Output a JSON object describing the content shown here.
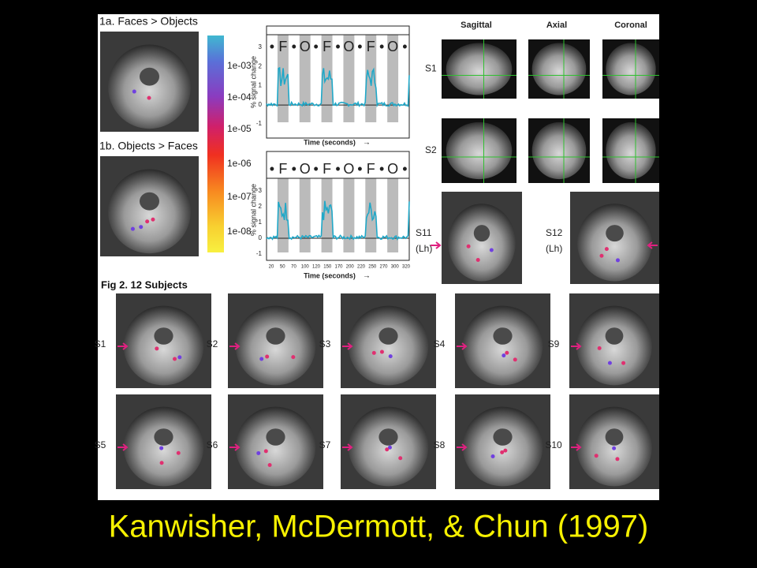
{
  "caption": "Kanwisher, McDermott, & Chun (1997)",
  "figure1": {
    "panel_a_title": "1a. Faces > Objects",
    "panel_b_title": "1b. Objects > Faces",
    "colorbar_labels": [
      "1e-03",
      "1e-04",
      "1e-05",
      "1e-06",
      "1e-07",
      "1e-08"
    ],
    "plots": [
      {
        "sequence": [
          "F",
          "O",
          "F",
          "O",
          "F",
          "O"
        ],
        "y_axis_label": "% signal change",
        "yticks": [
          "3",
          "2",
          "1",
          "0",
          "-1"
        ],
        "x_axis_label": "Time (seconds)"
      },
      {
        "sequence": [
          "F",
          "O",
          "F",
          "O",
          "F",
          "O"
        ],
        "y_axis_label": "% signal change",
        "yticks": [
          "3",
          "2",
          "1",
          "0",
          "-1"
        ],
        "x_axis_label": "Time (seconds)",
        "xticks": [
          "20",
          "50",
          "70",
          "100",
          "120",
          "150",
          "170",
          "200",
          "220",
          "250",
          "270",
          "300",
          "320"
        ]
      }
    ]
  },
  "views": {
    "headers": [
      "Sagittal",
      "Axial",
      "Coronal"
    ],
    "rows": [
      "S1",
      "S2"
    ]
  },
  "left_hemisphere": [
    {
      "name": "S11",
      "note": "(Lh)"
    },
    {
      "name": "S12",
      "note": "(Lh)"
    }
  ],
  "figure2": {
    "title": "Fig 2.  12 Subjects",
    "subjects": [
      "S1",
      "S2",
      "S3",
      "S4",
      "S9",
      "S5",
      "S6",
      "S7",
      "S8",
      "S10"
    ]
  }
}
